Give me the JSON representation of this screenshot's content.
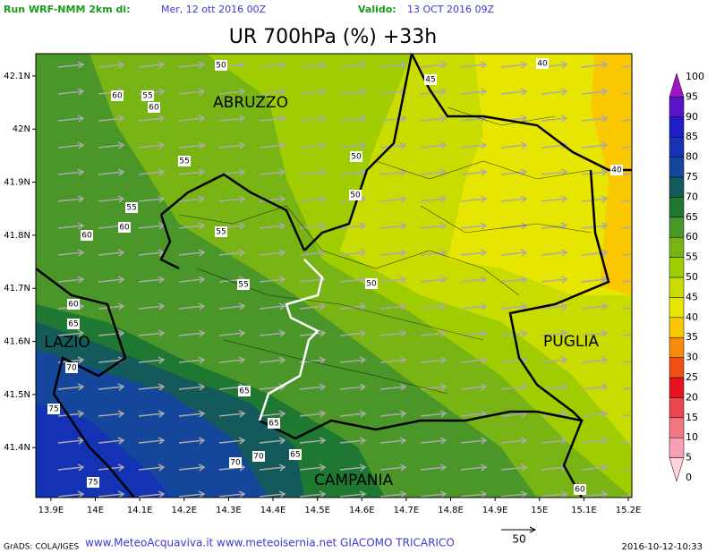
{
  "header": {
    "run_label": "Run WRF-NMM 2km di:",
    "run_date": "Mer, 12 ott 2016 00Z",
    "valid_label": "Valido:",
    "valid_date": "13 OCT 2016 09Z"
  },
  "title": "UR 700hPa (%) +33h",
  "map": {
    "xlim": [
      13.866,
      15.208
    ],
    "ylim": [
      41.306,
      42.142
    ],
    "xticks": [
      {
        "value": 13.9,
        "label": "13.9E"
      },
      {
        "value": 14,
        "label": "14E"
      },
      {
        "value": 14.1,
        "label": "14.1E"
      },
      {
        "value": 14.2,
        "label": "14.2E"
      },
      {
        "value": 14.3,
        "label": "14.3E"
      },
      {
        "value": 14.4,
        "label": "14.4E"
      },
      {
        "value": 14.5,
        "label": "14.5E"
      },
      {
        "value": 14.6,
        "label": "14.6E"
      },
      {
        "value": 14.7,
        "label": "14.7E"
      },
      {
        "value": 14.8,
        "label": "14.8E"
      },
      {
        "value": 14.9,
        "label": "14.9E"
      },
      {
        "value": 15,
        "label": "15E"
      },
      {
        "value": 15.1,
        "label": "15.1E"
      },
      {
        "value": 15.2,
        "label": "15.2E"
      }
    ],
    "yticks": [
      {
        "value": 41.4,
        "label": "41.4N"
      },
      {
        "value": 41.5,
        "label": "41.5N"
      },
      {
        "value": 41.6,
        "label": "41.6N"
      },
      {
        "value": 41.7,
        "label": "41.7N"
      },
      {
        "value": 41.8,
        "label": "41.8N"
      },
      {
        "value": 41.9,
        "label": "41.9N"
      },
      {
        "value": 42,
        "label": "42N"
      },
      {
        "value": 42.1,
        "label": "42.1N"
      }
    ],
    "regions": [
      "ABRUZZO",
      "LAZIO",
      "PUGLIA",
      "CAMPANIA"
    ],
    "contour_labels": [
      "50",
      "45",
      "40",
      "60",
      "55",
      "60",
      "50",
      "55",
      "40",
      "50",
      "55",
      "60",
      "55",
      "60",
      "50",
      "55",
      "60",
      "65",
      "70",
      "65",
      "75",
      "65",
      "70",
      "65",
      "70",
      "75",
      "60"
    ]
  },
  "colorbar": {
    "levels": [
      0,
      5,
      10,
      15,
      20,
      25,
      30,
      35,
      40,
      45,
      50,
      55,
      60,
      65,
      70,
      75,
      80,
      85,
      90,
      95,
      100
    ],
    "colors": [
      "#ffd2dc",
      "#f5a0b4",
      "#f07882",
      "#eb4650",
      "#e6141e",
      "#f05014",
      "#f58c0a",
      "#fac800",
      "#e6e600",
      "#c8dc00",
      "#a0cd00",
      "#78b414",
      "#4b9628",
      "#1e7832",
      "#145a5a",
      "#14469b",
      "#1432b4",
      "#1e1ec8",
      "#5a14c8",
      "#a014c8"
    ]
  },
  "footer": {
    "source": "GrADS: COLA/IGES",
    "credits": "www.MeteoAcquaviva.it www.meteoisernia.net GIACOMO TRICARICO",
    "vector_ref": 50,
    "timestamp": "2016-10-12-10:33"
  }
}
